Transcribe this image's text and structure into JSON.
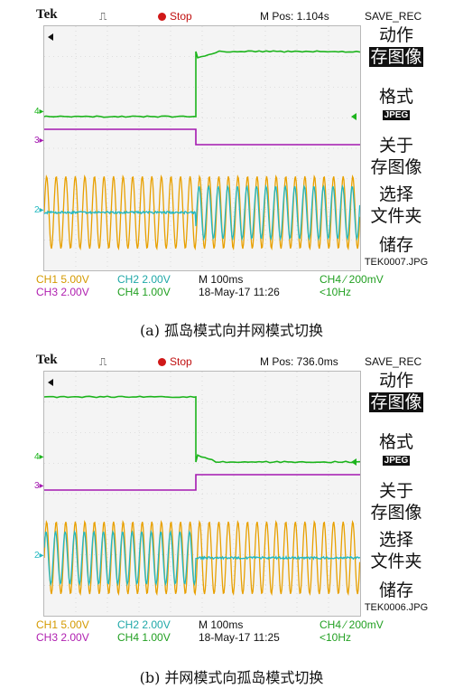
{
  "panels": [
    {
      "brand": "Tek",
      "trigger_glyph": "⎍",
      "run_state": "Stop",
      "m_pos": "M Pos: 1.104s",
      "mode": "SAVE_REC",
      "menu": {
        "action_title": "动作",
        "action_value": "存图像",
        "format_title": "格式",
        "format_value": "JPEG",
        "about_line1": "关于",
        "about_line2": "存图像",
        "select_line1": "选择",
        "select_line2": "文件夹",
        "save_title": "储存",
        "file_name": "TEK0007.JPG"
      },
      "status": {
        "ch1": "CH1  5.00V",
        "ch2": "CH2  2.00V",
        "ch3": "CH3  2.00V",
        "ch4": "CH4  1.00V",
        "timebase": "M 100ms",
        "date": "18-May-17 11:26",
        "trigger": "CH4 ⁄ 200mV",
        "freq": "<10Hz"
      },
      "caption": "(a)  孤岛模式向并网模式切换",
      "traces": {
        "switch_at_fraction": 0.48,
        "ch4_level_before": "low",
        "ch4_level_after": "high",
        "ch3_level_before": "high",
        "ch3_level_after": "low",
        "ch2_sine_before": false,
        "ch2_sine_after": true
      }
    },
    {
      "brand": "Tek",
      "trigger_glyph": "⎍",
      "run_state": "Stop",
      "m_pos": "M Pos: 736.0ms",
      "mode": "SAVE_REC",
      "menu": {
        "action_title": "动作",
        "action_value": "存图像",
        "format_title": "格式",
        "format_value": "JPEG",
        "about_line1": "关于",
        "about_line2": "存图像",
        "select_line1": "选择",
        "select_line2": "文件夹",
        "save_title": "储存",
        "file_name": "TEK0006.JPG"
      },
      "status": {
        "ch1": "CH1  5.00V",
        "ch2": "CH2  2.00V",
        "ch3": "CH3  2.00V",
        "ch4": "CH4  1.00V",
        "timebase": "M 100ms",
        "date": "18-May-17 11:25",
        "trigger": "CH4 ⁄ 200mV",
        "freq": "<10Hz"
      },
      "caption": "(b)  并网模式向孤岛模式切换",
      "traces": {
        "switch_at_fraction": 0.48,
        "ch4_level_before": "high",
        "ch4_level_after": "low",
        "ch3_level_before": "low",
        "ch3_level_after": "high",
        "ch2_sine_before": true,
        "ch2_sine_after": false
      }
    }
  ],
  "colors": {
    "ch1": "#e8a000",
    "ch2": "#22b8c0",
    "ch3": "#a418b0",
    "ch4": "#1cb41c",
    "grid": "#c8c8c8"
  }
}
